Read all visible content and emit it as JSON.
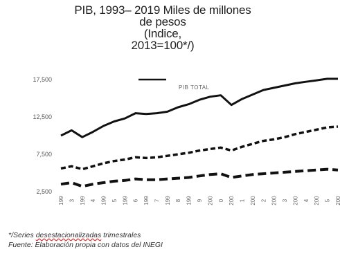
{
  "title_lines": [
    "PIB, 1993– 2019 Miles de millones",
    "de pesos",
    "(Indice,",
    "2013=100*/)"
  ],
  "footer": {
    "line1_prefix": "*/Series",
    "line1_underlined": "desestacionalizadas",
    "line1_suffix": "trimestrales",
    "line2": "Fuente: Elaboración propia con datos del INEGI"
  },
  "colors": {
    "line": "#111111",
    "text": "#555555"
  },
  "chart_data": {
    "type": "line",
    "title": "PIB, 1993– 2019 Miles de millones de pesos (Indice, 2013=100*/)",
    "xlabel": "",
    "ylabel": "",
    "x": [
      1993,
      1994,
      1995,
      1996,
      1997,
      1998,
      1999,
      2000,
      2001,
      2002,
      2003,
      2004,
      2005,
      2006,
      2007,
      2008,
      2009,
      2010,
      2011,
      2012,
      2013,
      2014,
      2015,
      2016,
      2017,
      2018,
      2019
    ],
    "xtick_labels": [
      "199",
      "3",
      "199",
      "4",
      "199",
      "5",
      "199",
      "6",
      "199",
      "7",
      "199",
      "8",
      "199",
      "9",
      "200",
      "0",
      "200",
      "1",
      "200",
      "2",
      "200",
      "3",
      "200",
      "4",
      "200",
      "5",
      "200"
    ],
    "ylim": [
      2500,
      17500
    ],
    "yticks": [
      2500,
      7500,
      12500,
      17500
    ],
    "ytick_labels": [
      "2,500",
      "7,500",
      "12,500",
      "17,500"
    ],
    "legend": {
      "position": "top-center",
      "entries": [
        "PIB TOTAL"
      ]
    },
    "grid": false,
    "series": [
      {
        "name": "PIB TOTAL",
        "style": "solid",
        "values": [
          10000,
          10700,
          9800,
          10500,
          11300,
          11900,
          12300,
          13000,
          12900,
          13000,
          13200,
          13800,
          14200,
          14800,
          15200,
          15400,
          14100,
          14900,
          15500,
          16100,
          16400,
          16700,
          17000,
          17200,
          17400,
          17600,
          17600
        ]
      },
      {
        "style": "dashed",
        "values": [
          5600,
          5900,
          5500,
          5900,
          6300,
          6600,
          6800,
          7100,
          7000,
          7100,
          7300,
          7500,
          7700,
          8000,
          8200,
          8400,
          8000,
          8500,
          8900,
          9300,
          9500,
          9800,
          10200,
          10500,
          10800,
          11100,
          11200
        ]
      },
      {
        "style": "long-dashed",
        "values": [
          3500,
          3700,
          3200,
          3500,
          3700,
          3900,
          4000,
          4200,
          4100,
          4100,
          4200,
          4300,
          4400,
          4600,
          4800,
          4900,
          4400,
          4600,
          4800,
          4900,
          5000,
          5100,
          5200,
          5300,
          5400,
          5500,
          5400
        ]
      }
    ]
  }
}
